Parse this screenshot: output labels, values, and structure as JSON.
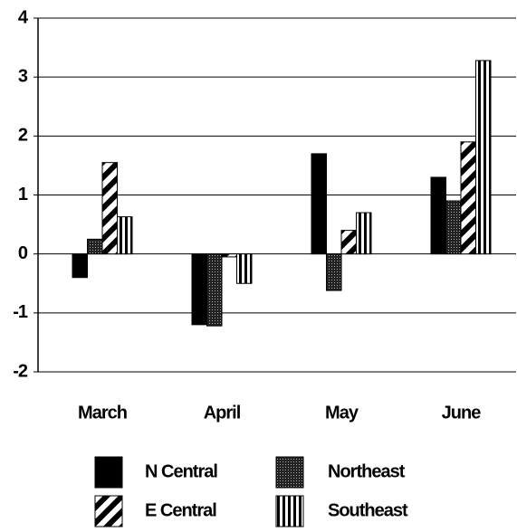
{
  "chart_data": {
    "type": "bar",
    "categories": [
      "March",
      "April",
      "May",
      "June"
    ],
    "series": [
      {
        "name": "N Central",
        "color": "#000000",
        "values": [
          -0.4,
          -1.2,
          1.7,
          1.3
        ]
      },
      {
        "name": "Northeast",
        "color": "#000000",
        "values": [
          0.25,
          -1.22,
          -0.62,
          0.9
        ]
      },
      {
        "name": "E Central",
        "color": "#000000",
        "values": [
          1.55,
          -0.05,
          0.4,
          1.9
        ]
      },
      {
        "name": "Southeast",
        "color": "#000000",
        "values": [
          0.63,
          -0.5,
          0.7,
          3.28
        ]
      }
    ],
    "ylim": [
      -2,
      4
    ],
    "yticks": [
      -2,
      -1,
      0,
      1,
      2,
      3,
      4
    ],
    "grid": true
  }
}
